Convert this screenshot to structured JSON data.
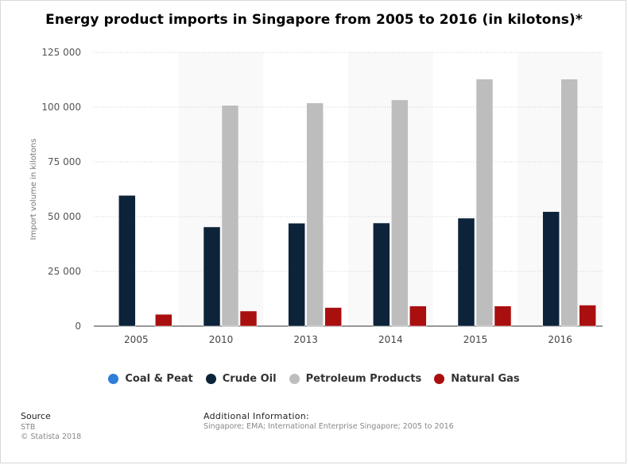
{
  "chart_data": {
    "type": "bar",
    "title": "Energy product imports in Singapore from 2005 to 2016 (in kilotons)*",
    "ylabel": "Import volume in kilotons",
    "xlabel": "",
    "ylim": [
      0,
      125000
    ],
    "yticks": [
      0,
      25000,
      50000,
      75000,
      100000,
      125000
    ],
    "ytick_labels": [
      "0",
      "25 000",
      "50 000",
      "75 000",
      "100 000",
      "125 000"
    ],
    "categories": [
      "2005",
      "2010",
      "2013",
      "2014",
      "2015",
      "2016"
    ],
    "grid": true,
    "legend_position": "bottom",
    "series": [
      {
        "name": "Coal & Peat",
        "color": "#2f7ed8",
        "values": [
          0,
          0,
          0,
          0,
          0,
          0
        ]
      },
      {
        "name": "Crude Oil",
        "color": "#0d233a",
        "values": [
          59700,
          45300,
          47000,
          47100,
          49300,
          52300
        ]
      },
      {
        "name": "Petroleum Products",
        "color": "#bdbdbd",
        "values": [
          0,
          100800,
          101900,
          103300,
          112800,
          112800
        ]
      },
      {
        "name": "Natural Gas",
        "color": "#a90f0f",
        "values": [
          5400,
          6900,
          8500,
          9200,
          9200,
          9600
        ]
      }
    ]
  },
  "source": {
    "title": "Source",
    "lines": [
      "STB",
      "© Statista 2018"
    ]
  },
  "additional_info": {
    "title": "Additional Information:",
    "text": "Singapore; EMA; International Enterprise Singapore; 2005 to 2016"
  }
}
